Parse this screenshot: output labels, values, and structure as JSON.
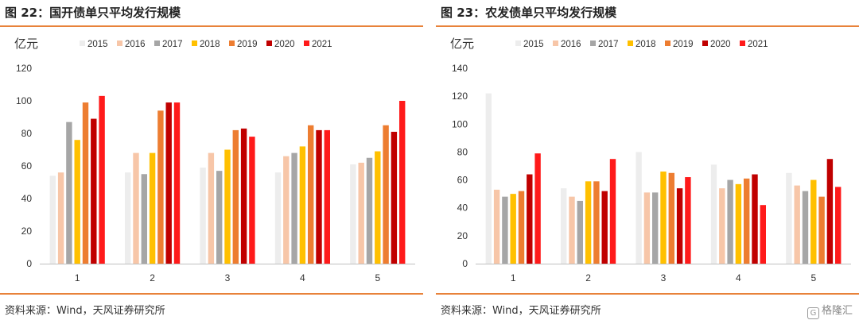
{
  "chart_data": [
    {
      "type": "bar",
      "title": "图 22：国开债单只平均发行规模",
      "ylabel": "亿元",
      "xlabel": "",
      "categories": [
        "1",
        "2",
        "3",
        "4",
        "5"
      ],
      "ylim": [
        0,
        120
      ],
      "yticks": [
        0,
        20,
        40,
        60,
        80,
        100,
        120
      ],
      "legend": "top",
      "grid": false,
      "series": [
        {
          "name": "2015",
          "color": "#ededed",
          "values": [
            54,
            56,
            59,
            56,
            61
          ]
        },
        {
          "name": "2016",
          "color": "#f7c6a8",
          "values": [
            56,
            68,
            68,
            66,
            62
          ]
        },
        {
          "name": "2017",
          "color": "#a6a6a6",
          "values": [
            87,
            55,
            57,
            68,
            65
          ]
        },
        {
          "name": "2018",
          "color": "#ffc000",
          "values": [
            76,
            68,
            70,
            72,
            69
          ]
        },
        {
          "name": "2019",
          "color": "#ed7d31",
          "values": [
            99,
            94,
            82,
            85,
            85
          ]
        },
        {
          "name": "2020",
          "color": "#c00000",
          "values": [
            89,
            99,
            83,
            82,
            81
          ]
        },
        {
          "name": "2021",
          "color": "#ff1a1a",
          "values": [
            103,
            99,
            78,
            82,
            100
          ]
        }
      ],
      "source": "资料来源：Wind，天风证券研究所"
    },
    {
      "type": "bar",
      "title": "图 23：农发债单只平均发行规模",
      "ylabel": "亿元",
      "xlabel": "",
      "categories": [
        "1",
        "2",
        "3",
        "4",
        "5"
      ],
      "ylim": [
        0,
        140
      ],
      "yticks": [
        0,
        20,
        40,
        60,
        80,
        100,
        120,
        140
      ],
      "legend": "top",
      "grid": false,
      "series": [
        {
          "name": "2015",
          "color": "#ededed",
          "values": [
            122,
            54,
            80,
            71,
            65
          ]
        },
        {
          "name": "2016",
          "color": "#f7c6a8",
          "values": [
            53,
            48,
            51,
            54,
            56
          ]
        },
        {
          "name": "2017",
          "color": "#a6a6a6",
          "values": [
            48,
            45,
            51,
            60,
            52
          ]
        },
        {
          "name": "2018",
          "color": "#ffc000",
          "values": [
            50,
            59,
            66,
            57,
            60
          ]
        },
        {
          "name": "2019",
          "color": "#ed7d31",
          "values": [
            52,
            59,
            65,
            61,
            48
          ]
        },
        {
          "name": "2020",
          "color": "#c00000",
          "values": [
            64,
            52,
            54,
            64,
            75
          ]
        },
        {
          "name": "2021",
          "color": "#ff1a1a",
          "values": [
            79,
            75,
            62,
            42,
            55
          ]
        }
      ],
      "source": "资料来源：Wind，天风证券研究所"
    }
  ],
  "watermark": {
    "icon": "gelonghui-logo-icon",
    "text": "格隆汇"
  }
}
